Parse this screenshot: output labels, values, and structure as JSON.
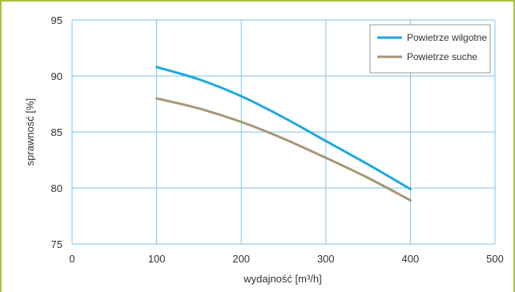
{
  "chart_data": {
    "type": "line",
    "xlabel": "wydajność [m³/h]",
    "ylabel": "sprawność [%]",
    "xlim": [
      0,
      500
    ],
    "ylim": [
      75,
      95
    ],
    "xticks": [
      "0",
      "100",
      "200",
      "300",
      "400",
      "500"
    ],
    "yticks": [
      "75",
      "80",
      "85",
      "90",
      "95"
    ],
    "grid": true,
    "legend_position": "top-right",
    "series": [
      {
        "name": "Powietrze wilgotne",
        "color": "#1fa8df",
        "x": [
          100,
          150,
          200,
          250,
          300,
          350,
          400
        ],
        "y": [
          90.8,
          89.7,
          88.2,
          86.3,
          84.2,
          82.1,
          79.9
        ]
      },
      {
        "name": "Powietrze suche",
        "color": "#a89577",
        "x": [
          100,
          150,
          200,
          250,
          300,
          350,
          400
        ],
        "y": [
          88.0,
          87.1,
          85.9,
          84.4,
          82.7,
          80.9,
          78.9
        ]
      }
    ]
  }
}
